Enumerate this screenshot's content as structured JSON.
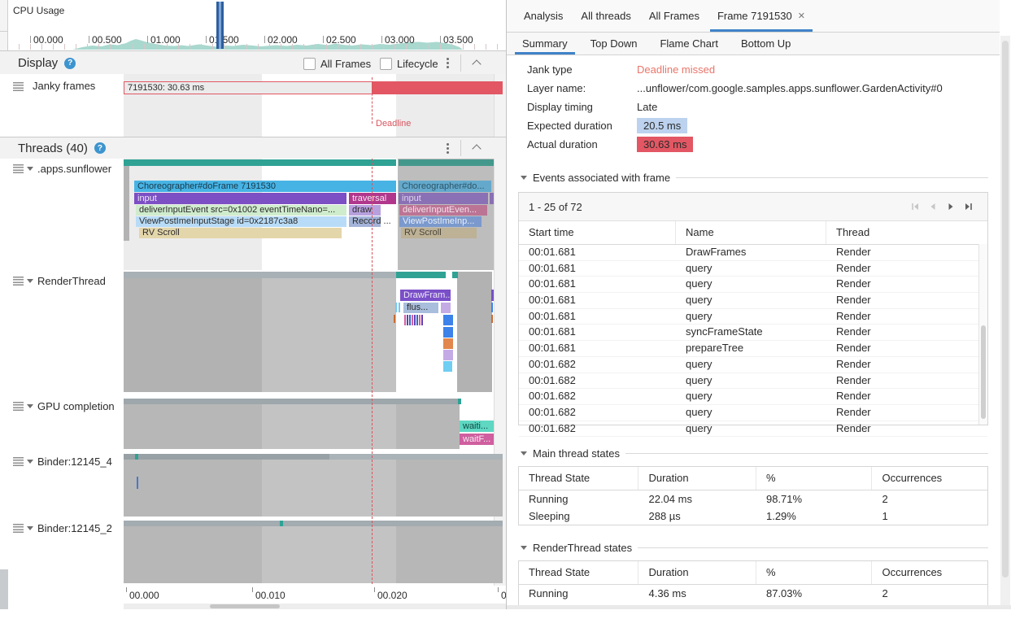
{
  "colors": {
    "accent_blue": "#4083c9",
    "jank_red": "#e25763",
    "deadline_red": "#d9545e",
    "state_running_teal": "#2fa294",
    "cpu_area_teal": "#a9d8cf",
    "expected_chip_blue": "#bcd2ee"
  },
  "cpu": {
    "label": "CPU Usage",
    "ticks": [
      "00.000",
      "00.500",
      "01.000",
      "01.500",
      "02.000",
      "02.500",
      "03.000",
      "03.500"
    ]
  },
  "display": {
    "title": "Display",
    "checkboxes": [
      {
        "label": "All Frames",
        "checked": false
      },
      {
        "label": "Lifecycle",
        "checked": false
      }
    ],
    "track_name": "Janky frames",
    "frame_label": "7191530: 30.63 ms",
    "deadline_label": "Deadline"
  },
  "threads": {
    "title": "Threads (40)",
    "axis_ticks": [
      "00.000",
      "00.010",
      "00.020",
      "0"
    ],
    "tracks": [
      {
        "name": ".apps.sunflower"
      },
      {
        "name": "RenderThread"
      },
      {
        "name": "GPU completion"
      },
      {
        "name": "Binder:12145_4"
      },
      {
        "name": "Binder:12145_2"
      }
    ],
    "sunflower_bars": {
      "doframe": "Choreographer#doFrame 7191530",
      "input": "input",
      "traversal": "traversal",
      "deliver": "deliverInputEvent src=0x1002 eventTimeNano=...",
      "draw": "draw",
      "record": "Record ...",
      "viewpost": "ViewPostImeInputStage id=0x2187c3a8",
      "rv_scroll": "RV Scroll",
      "doframe_dim": "Choreographer#do...",
      "input_dim": "input",
      "deliver_dim": "deliverInputEven...",
      "viewpost_dim": "ViewPostImeInp...",
      "rv_scroll_dim": "RV Scroll"
    },
    "render_bars": {
      "drawframes": "DrawFram...",
      "flush": "flus..."
    },
    "gpu_bars": {
      "waiting": "waiti...",
      "waitfence": "waitF..."
    }
  },
  "panel": {
    "tabs": [
      {
        "label": "Analysis",
        "active": false,
        "closable": false
      },
      {
        "label": "All threads",
        "active": false,
        "closable": false
      },
      {
        "label": "All Frames",
        "active": false,
        "closable": false
      },
      {
        "label": "Frame 7191530",
        "active": true,
        "closable": true
      }
    ],
    "subtabs": [
      {
        "label": "Summary",
        "active": true
      },
      {
        "label": "Top Down",
        "active": false
      },
      {
        "label": "Flame Chart",
        "active": false
      },
      {
        "label": "Bottom Up",
        "active": false
      }
    ],
    "summary": {
      "rows": [
        {
          "label": "Jank type",
          "value": "Deadline missed",
          "style": "red-text"
        },
        {
          "label": "Layer name:",
          "value": "...unflower/com.google.samples.apps.sunflower.GardenActivity#0",
          "style": "plain"
        },
        {
          "label": "Display timing",
          "value": "Late",
          "style": "plain"
        },
        {
          "label": "Expected duration",
          "value": "20.5 ms",
          "style": "blue-chip"
        },
        {
          "label": "Actual duration",
          "value": "30.63 ms",
          "style": "red-chip"
        }
      ]
    },
    "events": {
      "section_title": "Events associated with frame",
      "pagination": "1 - 25 of 72",
      "columns": [
        "Start time",
        "Name",
        "Thread"
      ],
      "rows": [
        [
          "00:01.681",
          "DrawFrames",
          "Render"
        ],
        [
          "00:01.681",
          "query",
          "Render"
        ],
        [
          "00:01.681",
          "query",
          "Render"
        ],
        [
          "00:01.681",
          "query",
          "Render"
        ],
        [
          "00:01.681",
          "query",
          "Render"
        ],
        [
          "00:01.681",
          "syncFrameState",
          "Render"
        ],
        [
          "00:01.681",
          "prepareTree",
          "Render"
        ],
        [
          "00:01.682",
          "query",
          "Render"
        ],
        [
          "00:01.682",
          "query",
          "Render"
        ],
        [
          "00:01.682",
          "query",
          "Render"
        ],
        [
          "00:01.682",
          "query",
          "Render"
        ],
        [
          "00:01.682",
          "query",
          "Render"
        ]
      ]
    },
    "main_states": {
      "section_title": "Main thread states",
      "columns": [
        "Thread State",
        "Duration",
        "%",
        "Occurrences"
      ],
      "rows": [
        [
          "Running",
          "22.04 ms",
          "98.71%",
          "2"
        ],
        [
          "Sleeping",
          "288 µs",
          "1.29%",
          "1"
        ]
      ]
    },
    "render_states": {
      "section_title": "RenderThread states",
      "columns": [
        "Thread State",
        "Duration",
        "%",
        "Occurrences"
      ],
      "rows": [
        [
          "Running",
          "4.36 ms",
          "87.03%",
          "2"
        ]
      ],
      "clipped_row": true
    }
  }
}
